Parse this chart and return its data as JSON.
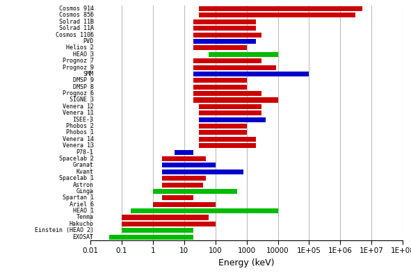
{
  "satellites": [
    {
      "name": "Cosmos 914",
      "xmin": 30,
      "xmax": 5000000,
      "color": "#cc0000"
    },
    {
      "name": "Cosmos 856",
      "xmin": 30,
      "xmax": 3000000,
      "color": "#cc0000"
    },
    {
      "name": "Solrad 11B",
      "xmin": 20,
      "xmax": 2000,
      "color": "#cc0000"
    },
    {
      "name": "Solrad 11A",
      "xmin": 20,
      "xmax": 2000,
      "color": "#cc0000"
    },
    {
      "name": "Cosmos 1106",
      "xmin": 20,
      "xmax": 3000,
      "color": "#cc0000"
    },
    {
      "name": "PVO",
      "xmin": 20,
      "xmax": 2000,
      "color": "#0000cc"
    },
    {
      "name": "Helios 2",
      "xmin": 20,
      "xmax": 1000,
      "color": "#cc0000"
    },
    {
      "name": "HEAO 3",
      "xmin": 60,
      "xmax": 10000,
      "color": "#00bb00"
    },
    {
      "name": "Prognoz 7",
      "xmin": 20,
      "xmax": 3000,
      "color": "#cc0000"
    },
    {
      "name": "Prognoz 9",
      "xmin": 20,
      "xmax": 9000,
      "color": "#cc0000"
    },
    {
      "name": "SMM",
      "xmin": 20,
      "xmax": 100000,
      "color": "#0000cc"
    },
    {
      "name": "DMSP 9",
      "xmin": 20,
      "xmax": 1000,
      "color": "#cc0000"
    },
    {
      "name": "DMSP 8",
      "xmin": 20,
      "xmax": 1000,
      "color": "#cc0000"
    },
    {
      "name": "Prognoz 6",
      "xmin": 20,
      "xmax": 3000,
      "color": "#cc0000"
    },
    {
      "name": "SIGNE 3",
      "xmin": 20,
      "xmax": 10000,
      "color": "#cc0000"
    },
    {
      "name": "Venera 12",
      "xmin": 30,
      "xmax": 3000,
      "color": "#cc0000"
    },
    {
      "name": "Venera 11",
      "xmin": 30,
      "xmax": 3000,
      "color": "#cc0000"
    },
    {
      "name": "ISEE-3",
      "xmin": 30,
      "xmax": 4000,
      "color": "#0000cc"
    },
    {
      "name": "Phobos 2",
      "xmin": 30,
      "xmax": 1000,
      "color": "#cc0000"
    },
    {
      "name": "Phobos 1",
      "xmin": 30,
      "xmax": 1000,
      "color": "#cc0000"
    },
    {
      "name": "Venera 14",
      "xmin": 30,
      "xmax": 2000,
      "color": "#cc0000"
    },
    {
      "name": "Venera 13",
      "xmin": 30,
      "xmax": 2000,
      "color": "#cc0000"
    },
    {
      "name": "P78-1",
      "xmin": 5,
      "xmax": 20,
      "color": "#0000cc"
    },
    {
      "name": "Spacelab 2",
      "xmin": 2,
      "xmax": 50,
      "color": "#cc0000"
    },
    {
      "name": "Granat",
      "xmin": 2,
      "xmax": 100,
      "color": "#0000cc"
    },
    {
      "name": "Kvant",
      "xmin": 2,
      "xmax": 800,
      "color": "#0000cc"
    },
    {
      "name": "Spacelab 1",
      "xmin": 2,
      "xmax": 50,
      "color": "#cc0000"
    },
    {
      "name": "Astron",
      "xmin": 2,
      "xmax": 40,
      "color": "#cc0000"
    },
    {
      "name": "Ginga",
      "xmin": 1,
      "xmax": 500,
      "color": "#00bb00"
    },
    {
      "name": "Spartan 1",
      "xmin": 2,
      "xmax": 20,
      "color": "#cc0000"
    },
    {
      "name": "Ariel 6",
      "xmin": 1,
      "xmax": 100,
      "color": "#cc0000"
    },
    {
      "name": "HEAO 1",
      "xmin": 0.2,
      "xmax": 10000,
      "color": "#00bb00"
    },
    {
      "name": "Tenma",
      "xmin": 0.1,
      "xmax": 60,
      "color": "#cc0000"
    },
    {
      "name": "Hakucho",
      "xmin": 0.1,
      "xmax": 100,
      "color": "#cc0000"
    },
    {
      "name": "Einstein (HEAO 2)",
      "xmin": 0.1,
      "xmax": 20,
      "color": "#00bb00"
    },
    {
      "name": "EXOSAT",
      "xmin": 0.04,
      "xmax": 20,
      "color": "#00bb00"
    }
  ],
  "xlabel": "Energy (keV)",
  "xlim": [
    0.01,
    100000000.0
  ],
  "background_color": "#ffffff",
  "bar_height": 0.75,
  "grid_color": "#bbbbbb",
  "xticks": [
    0.01,
    0.1,
    1,
    10,
    100,
    1000,
    10000,
    100000.0,
    1000000.0,
    10000000.0,
    100000000.0
  ],
  "xlabels": [
    "0.01",
    "0.1",
    "1",
    "10",
    "100",
    "1000",
    "10000",
    "1E+05",
    "1E+06",
    "1E+07",
    "1E+08"
  ],
  "label_fontsize": 6.0,
  "xlabel_fontsize": 9,
  "xtick_fontsize": 7.5,
  "figwidth": 5.91,
  "figheight": 3.93,
  "dpi": 100
}
